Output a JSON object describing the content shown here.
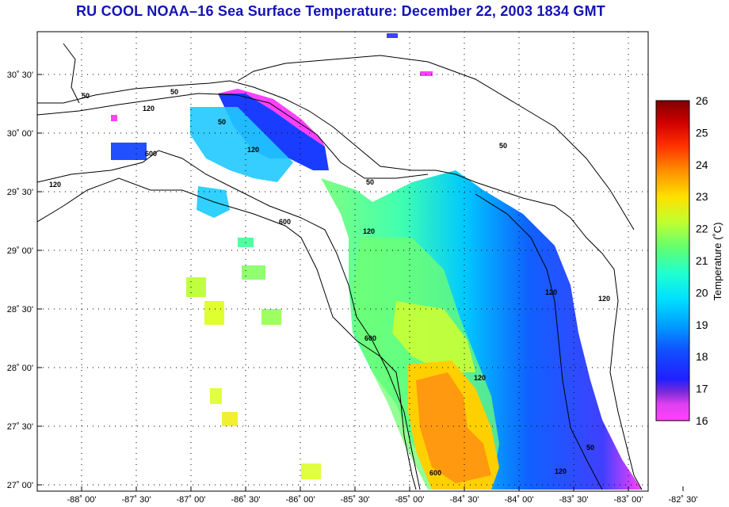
{
  "title": "RU COOL  NOAA–16  Sea Surface Temperature:  December 22, 2003 1834 GMT",
  "lon_ticks": [
    {
      "value": -88.0,
      "label": "-88˚ 00'"
    },
    {
      "value": -87.5,
      "label": "-87˚ 30'"
    },
    {
      "value": -87.0,
      "label": "-87˚ 00'"
    },
    {
      "value": -86.5,
      "label": "-86˚ 30'"
    },
    {
      "value": -86.0,
      "label": "-86˚ 00'"
    },
    {
      "value": -85.5,
      "label": "-85˚ 30'"
    },
    {
      "value": -85.0,
      "label": "-85˚ 00'"
    },
    {
      "value": -84.5,
      "label": "-84˚ 30'"
    },
    {
      "value": -84.0,
      "label": "-84˚ 00'"
    },
    {
      "value": -83.5,
      "label": "-83˚ 30'"
    },
    {
      "value": -83.0,
      "label": "-83˚ 00'"
    },
    {
      "value": -82.5,
      "label": "-82˚ 30'"
    }
  ],
  "lat_ticks": [
    {
      "value": 30.5,
      "label": "30˚ 30'"
    },
    {
      "value": 30.0,
      "label": "30˚ 00'"
    },
    {
      "value": 29.5,
      "label": "29˚ 30'"
    },
    {
      "value": 29.0,
      "label": "29˚ 00'"
    },
    {
      "value": 28.5,
      "label": "28˚ 30'"
    },
    {
      "value": 28.0,
      "label": "28˚ 00'"
    },
    {
      "value": 27.5,
      "label": "27˚ 30'"
    },
    {
      "value": 27.0,
      "label": "27˚ 00'"
    }
  ],
  "contour_labels": [
    "50",
    "50",
    "50",
    "50",
    "50",
    "120",
    "120",
    "120",
    "120",
    "120",
    "120",
    "120",
    "600",
    "600",
    "600",
    "600",
    "50",
    "120"
  ],
  "colorbar": {
    "title": "Temperature (˚C)",
    "min": 16,
    "max": 26,
    "tick_labels": [
      "26",
      "25",
      "24",
      "23",
      "22",
      "21",
      "20",
      "19",
      "18",
      "17",
      "16"
    ]
  }
}
